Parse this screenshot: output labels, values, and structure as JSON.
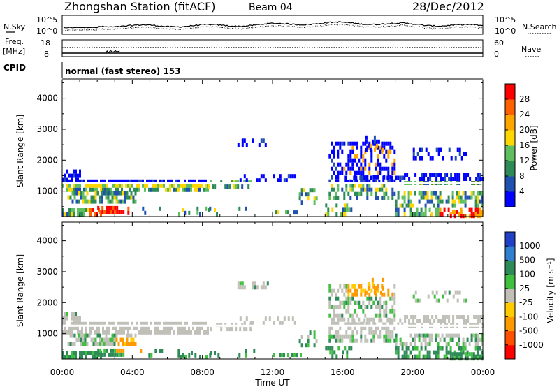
{
  "header": {
    "title": "Zhongshan Station (fitACF)",
    "beam": "Beam 04",
    "date": "28/Dec/2012"
  },
  "noise_panel": {
    "left_label": "N.Sky",
    "left_ticks": [
      "10^5",
      "10^0"
    ],
    "right_label": "N.Search",
    "right_ticks": [
      "10^5",
      "10^0"
    ]
  },
  "freq_panel": {
    "left_label_1": "Freq.",
    "left_label_2": "[MHz]",
    "left_ticks": [
      "18",
      "8"
    ],
    "right_label": "Nave",
    "right_ticks": [
      "60",
      "0"
    ]
  },
  "cpid_panel": {
    "label": "CPID",
    "text": "normal (fast stereo) 153"
  },
  "colors": {
    "power": [
      "#0000ff",
      "#2050b0",
      "#2e8b57",
      "#5fbf5f",
      "#ffd700",
      "#ffa500",
      "#ff6000",
      "#ff0000"
    ],
    "velocity": [
      "#2040c8",
      "#3080d0",
      "#2e8b57",
      "#40c040",
      "#c0c0b8",
      "#ffcc00",
      "#ff9900",
      "#ff5000",
      "#ff0000"
    ],
    "gray_scatter": "#bebeb8"
  },
  "chart_data": [
    {
      "type": "heatmap",
      "name": "power",
      "ylabel": "Slant Range [km]",
      "xlabel": "Time UT",
      "x_ticks": [
        "00:00",
        "04:00",
        "08:00",
        "12:00",
        "16:00",
        "20:00",
        "00:00"
      ],
      "x_range_hours": [
        0,
        24
      ],
      "y_ticks": [
        "1000",
        "2000",
        "3000",
        "4000"
      ],
      "y_range_km": [
        180,
        4600
      ],
      "colorbar_label": "Power [dB]",
      "colorbar_ticks": [
        "4",
        "8",
        "12",
        "16",
        "20",
        "24",
        "28"
      ],
      "colorbar_range": [
        0,
        32
      ]
    },
    {
      "type": "heatmap",
      "name": "velocity",
      "ylabel": "Slant Range [km]",
      "xlabel": "Time UT",
      "x_ticks": [
        "00:00",
        "04:00",
        "08:00",
        "12:00",
        "16:00",
        "20:00",
        "00:00"
      ],
      "x_range_hours": [
        0,
        24
      ],
      "y_ticks": [
        "1000",
        "2000",
        "3000",
        "4000"
      ],
      "y_range_km": [
        180,
        4600
      ],
      "colorbar_label": "Velocity [m s⁻¹]",
      "colorbar_ticks": [
        "1000",
        "500",
        "100",
        "25",
        "-25",
        "-100",
        "-500",
        "-1000"
      ]
    }
  ],
  "xlabel": "Time UT"
}
